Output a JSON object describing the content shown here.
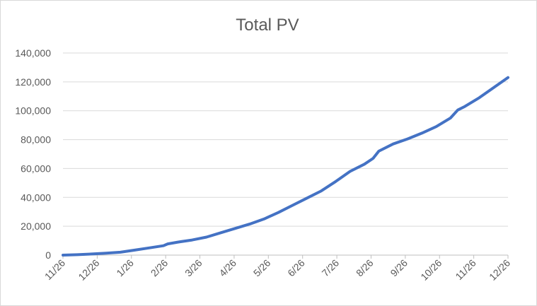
{
  "chart_data": {
    "type": "line",
    "title": "Total PV",
    "xlabel": "",
    "ylabel": "",
    "ylim": [
      0,
      140000
    ],
    "yticks": [
      "0",
      "20,000",
      "40,000",
      "60,000",
      "80,000",
      "100,000",
      "120,000",
      "140,000"
    ],
    "ytick_values": [
      0,
      20000,
      40000,
      60000,
      80000,
      100000,
      120000,
      140000
    ],
    "categories": [
      "11/26",
      "12/26",
      "1/26",
      "2/26",
      "3/26",
      "4/26",
      "5/26",
      "6/26",
      "7/26",
      "8/26",
      "9/26",
      "10/26",
      "11/26",
      "12/26"
    ],
    "grid": true,
    "legend": "none",
    "series": [
      {
        "color": "#4472c4",
        "points": [
          {
            "x": 0,
            "y": 0
          },
          {
            "x": 0.5,
            "y": 300
          },
          {
            "x": 1,
            "y": 800
          },
          {
            "x": 1.5,
            "y": 1300
          },
          {
            "x": 2,
            "y": 2000
          },
          {
            "x": 2.5,
            "y": 3500
          },
          {
            "x": 3,
            "y": 5000
          },
          {
            "x": 3.5,
            "y": 6500
          },
          {
            "x": 3.65,
            "y": 7800
          },
          {
            "x": 4,
            "y": 9000
          },
          {
            "x": 4.5,
            "y": 10500
          },
          {
            "x": 5,
            "y": 12500
          },
          {
            "x": 5.5,
            "y": 15500
          },
          {
            "x": 6,
            "y": 18500
          },
          {
            "x": 6.5,
            "y": 21500
          },
          {
            "x": 7,
            "y": 25000
          },
          {
            "x": 7.5,
            "y": 29500
          },
          {
            "x": 8,
            "y": 34500
          },
          {
            "x": 8.5,
            "y": 39500
          },
          {
            "x": 9,
            "y": 44500
          },
          {
            "x": 9.5,
            "y": 51000
          },
          {
            "x": 10,
            "y": 58000
          },
          {
            "x": 10.5,
            "y": 63000
          },
          {
            "x": 10.8,
            "y": 67000
          },
          {
            "x": 11,
            "y": 72000
          },
          {
            "x": 11.5,
            "y": 77000
          },
          {
            "x": 12,
            "y": 80500
          },
          {
            "x": 12.5,
            "y": 84500
          },
          {
            "x": 13,
            "y": 89000
          },
          {
            "x": 13.5,
            "y": 95000
          },
          {
            "x": 13.75,
            "y": 100500
          },
          {
            "x": 14,
            "y": 103000
          },
          {
            "x": 14.5,
            "y": 109000
          },
          {
            "x": 15,
            "y": 116000
          },
          {
            "x": 15.5,
            "y": 123000
          }
        ]
      }
    ]
  }
}
